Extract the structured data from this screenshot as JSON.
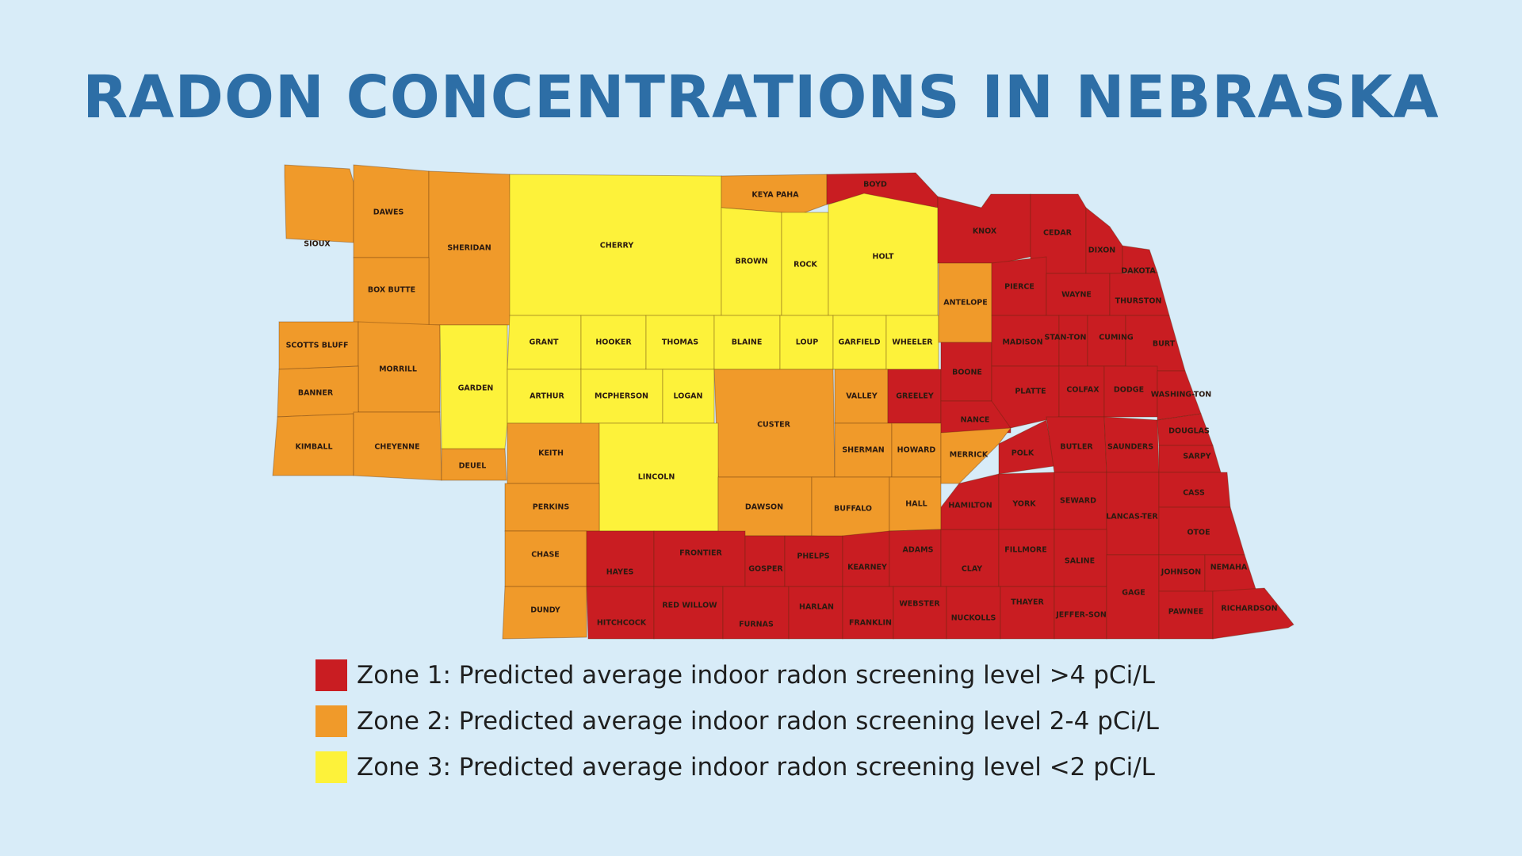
{
  "title": "RADON CONCENTRATIONS IN NEBRASKA",
  "colors": {
    "zone1": "#c91d22",
    "zone2": "#f09a2a",
    "zone3": "#fdf23a",
    "background": "#d8ecf8",
    "title": "#2d6ea6"
  },
  "legend": [
    {
      "zone": 1,
      "label": "Zone 1: Predicted average indoor radon screening level >4 pCi/L"
    },
    {
      "zone": 2,
      "label": "Zone 2: Predicted average indoor radon screening level 2-4 pCi/L"
    },
    {
      "zone": 3,
      "label": "Zone 3: Predicted average indoor radon screening level <2 pCi/L"
    }
  ],
  "counties": [
    {
      "name": "SIOUX",
      "zone": 2
    },
    {
      "name": "DAWES",
      "zone": 2
    },
    {
      "name": "SHERIDAN",
      "zone": 2
    },
    {
      "name": "BOX BUTTE",
      "zone": 2
    },
    {
      "name": "SCOTTS BLUFF",
      "zone": 2
    },
    {
      "name": "MORRILL",
      "zone": 2
    },
    {
      "name": "BANNER",
      "zone": 2
    },
    {
      "name": "KIMBALL",
      "zone": 2
    },
    {
      "name": "CHEYENNE",
      "zone": 2
    },
    {
      "name": "DEUEL",
      "zone": 2
    },
    {
      "name": "GARDEN",
      "zone": 3
    },
    {
      "name": "CHERRY",
      "zone": 3
    },
    {
      "name": "KEYA PAHA",
      "zone": 2
    },
    {
      "name": "BOYD",
      "zone": 1
    },
    {
      "name": "BROWN",
      "zone": 3
    },
    {
      "name": "ROCK",
      "zone": 3
    },
    {
      "name": "HOLT",
      "zone": 3
    },
    {
      "name": "KNOX",
      "zone": 1
    },
    {
      "name": "CEDAR",
      "zone": 1
    },
    {
      "name": "DIXON",
      "zone": 1
    },
    {
      "name": "DAKOTA",
      "zone": 1
    },
    {
      "name": "GRANT",
      "zone": 3
    },
    {
      "name": "HOOKER",
      "zone": 3
    },
    {
      "name": "THOMAS",
      "zone": 3
    },
    {
      "name": "BLAINE",
      "zone": 3
    },
    {
      "name": "LOUP",
      "zone": 3
    },
    {
      "name": "GARFIELD",
      "zone": 3
    },
    {
      "name": "WHEELER",
      "zone": 3
    },
    {
      "name": "ANTELOPE",
      "zone": 2
    },
    {
      "name": "PIERCE",
      "zone": 1
    },
    {
      "name": "WAYNE",
      "zone": 1
    },
    {
      "name": "THURSTON",
      "zone": 1
    },
    {
      "name": "ARTHUR",
      "zone": 3
    },
    {
      "name": "MCPHERSON",
      "zone": 3
    },
    {
      "name": "LOGAN",
      "zone": 3
    },
    {
      "name": "CUSTER",
      "zone": 2
    },
    {
      "name": "VALLEY",
      "zone": 2
    },
    {
      "name": "GREELEY",
      "zone": 1
    },
    {
      "name": "BOONE",
      "zone": 1
    },
    {
      "name": "MADISON",
      "zone": 1
    },
    {
      "name": "STAN-TON",
      "zone": 1
    },
    {
      "name": "CUMING",
      "zone": 1
    },
    {
      "name": "BURT",
      "zone": 1
    },
    {
      "name": "KEITH",
      "zone": 2
    },
    {
      "name": "LINCOLN",
      "zone": 3
    },
    {
      "name": "SHERMAN",
      "zone": 2
    },
    {
      "name": "HOWARD",
      "zone": 2
    },
    {
      "name": "NANCE",
      "zone": 1
    },
    {
      "name": "PLATTE",
      "zone": 1
    },
    {
      "name": "COLFAX",
      "zone": 1
    },
    {
      "name": "DODGE",
      "zone": 1
    },
    {
      "name": "WASHING-TON",
      "zone": 1
    },
    {
      "name": "PERKINS",
      "zone": 2
    },
    {
      "name": "DAWSON",
      "zone": 2
    },
    {
      "name": "BUFFALO",
      "zone": 2
    },
    {
      "name": "HALL",
      "zone": 2
    },
    {
      "name": "MERRICK",
      "zone": 2
    },
    {
      "name": "POLK",
      "zone": 1
    },
    {
      "name": "BUTLER",
      "zone": 1
    },
    {
      "name": "SAUNDERS",
      "zone": 1
    },
    {
      "name": "DOUGLAS",
      "zone": 1
    },
    {
      "name": "SARPY",
      "zone": 1
    },
    {
      "name": "CHASE",
      "zone": 2
    },
    {
      "name": "HAYES",
      "zone": 1
    },
    {
      "name": "FRONTIER",
      "zone": 1
    },
    {
      "name": "GOSPER",
      "zone": 1
    },
    {
      "name": "PHELPS",
      "zone": 1
    },
    {
      "name": "KEARNEY",
      "zone": 1
    },
    {
      "name": "ADAMS",
      "zone": 1
    },
    {
      "name": "CLAY",
      "zone": 1
    },
    {
      "name": "HAMILTON",
      "zone": 1
    },
    {
      "name": "YORK",
      "zone": 1
    },
    {
      "name": "SEWARD",
      "zone": 1
    },
    {
      "name": "LANCAS-TER",
      "zone": 1
    },
    {
      "name": "CASS",
      "zone": 1
    },
    {
      "name": "OTOE",
      "zone": 1
    },
    {
      "name": "FILLMORE",
      "zone": 1
    },
    {
      "name": "SALINE",
      "zone": 1
    },
    {
      "name": "DUNDY",
      "zone": 2
    },
    {
      "name": "HITCHCOCK",
      "zone": 1
    },
    {
      "name": "RED WILLOW",
      "zone": 1
    },
    {
      "name": "FURNAS",
      "zone": 1
    },
    {
      "name": "HARLAN",
      "zone": 1
    },
    {
      "name": "FRANKLIN",
      "zone": 1
    },
    {
      "name": "WEBSTER",
      "zone": 1
    },
    {
      "name": "NUCKOLLS",
      "zone": 1
    },
    {
      "name": "THAYER",
      "zone": 1
    },
    {
      "name": "JEFFER-SON",
      "zone": 1
    },
    {
      "name": "GAGE",
      "zone": 1
    },
    {
      "name": "JOHNSON",
      "zone": 1
    },
    {
      "name": "NEMAHA",
      "zone": 1
    },
    {
      "name": "PAWNEE",
      "zone": 1
    },
    {
      "name": "RICHARDSON",
      "zone": 1
    }
  ]
}
